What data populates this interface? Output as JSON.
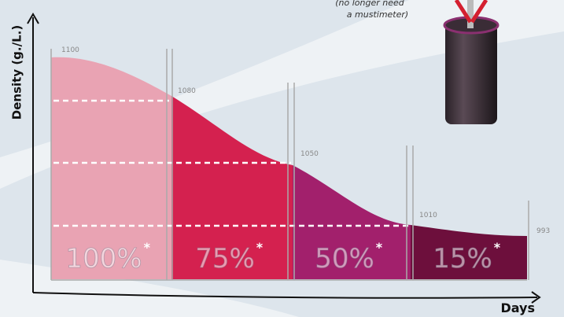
{
  "axis_labels": {
    "y": "Density (g./L.)",
    "x": "Days"
  },
  "note": {
    "lines": [
      "(no longer need",
      "a mustimeter)"
    ]
  },
  "stages": [
    {
      "percent": "100%",
      "marker": "*",
      "density": "1100"
    },
    {
      "percent": "75%",
      "marker": "*",
      "density": "1080"
    },
    {
      "percent": "50%",
      "marker": "*",
      "density": "1050"
    },
    {
      "percent": "15%",
      "marker": "*",
      "density": "1010"
    }
  ],
  "final_density": "993"
}
